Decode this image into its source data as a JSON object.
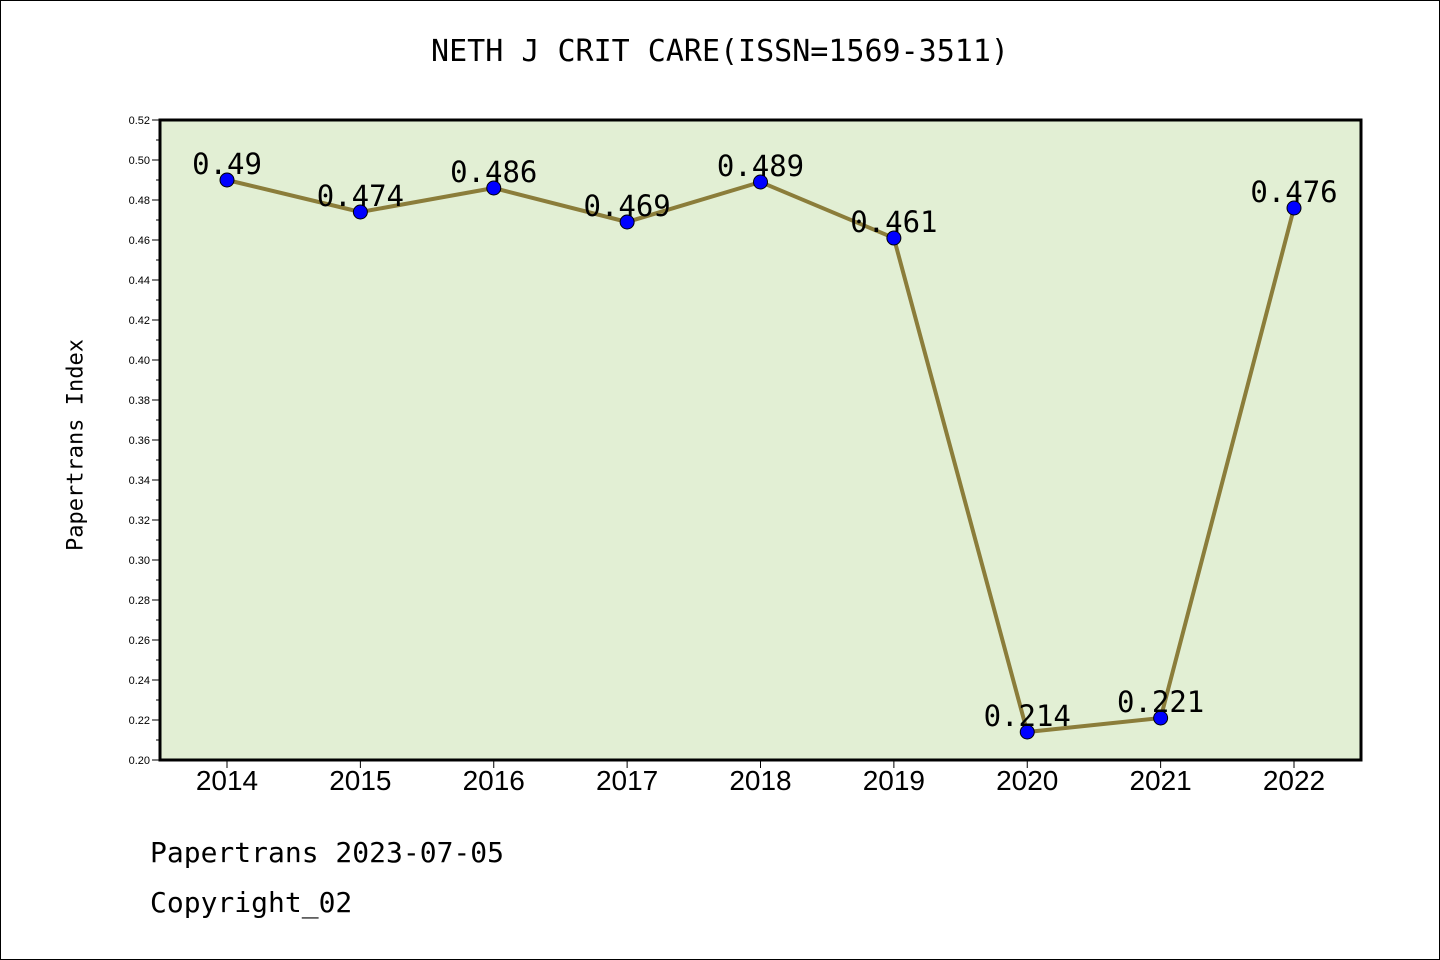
{
  "chart_data": {
    "type": "line",
    "title": "NETH J CRIT CARE(ISSN=1569-3511)",
    "xlabel": "",
    "ylabel": "Papertrans Index",
    "categories": [
      "2014",
      "2015",
      "2016",
      "2017",
      "2018",
      "2019",
      "2020",
      "2021",
      "2022"
    ],
    "series": [
      {
        "values": [
          0.49,
          0.474,
          0.486,
          0.469,
          0.489,
          0.461,
          0.214,
          0.221,
          0.476
        ],
        "labels": [
          "0.49",
          "0.474",
          "0.486",
          "0.469",
          "0.489",
          "0.461",
          "0.214",
          "0.221",
          "0.476"
        ]
      }
    ],
    "ylim": [
      0.2,
      0.52
    ],
    "yticks": [
      "0.20",
      "0.22",
      "0.24",
      "0.26",
      "0.28",
      "0.30",
      "0.32",
      "0.34",
      "0.36",
      "0.38",
      "0.40",
      "0.42",
      "0.44",
      "0.46",
      "0.48",
      "0.50",
      "0.52"
    ],
    "grid": false,
    "colors": {
      "plot_background": "#e2efd4",
      "line": "#8b7d3a",
      "marker": "#0000ff"
    }
  },
  "footer": {
    "line1": "Papertrans 2023-07-05",
    "line2": "Copyright_02"
  }
}
